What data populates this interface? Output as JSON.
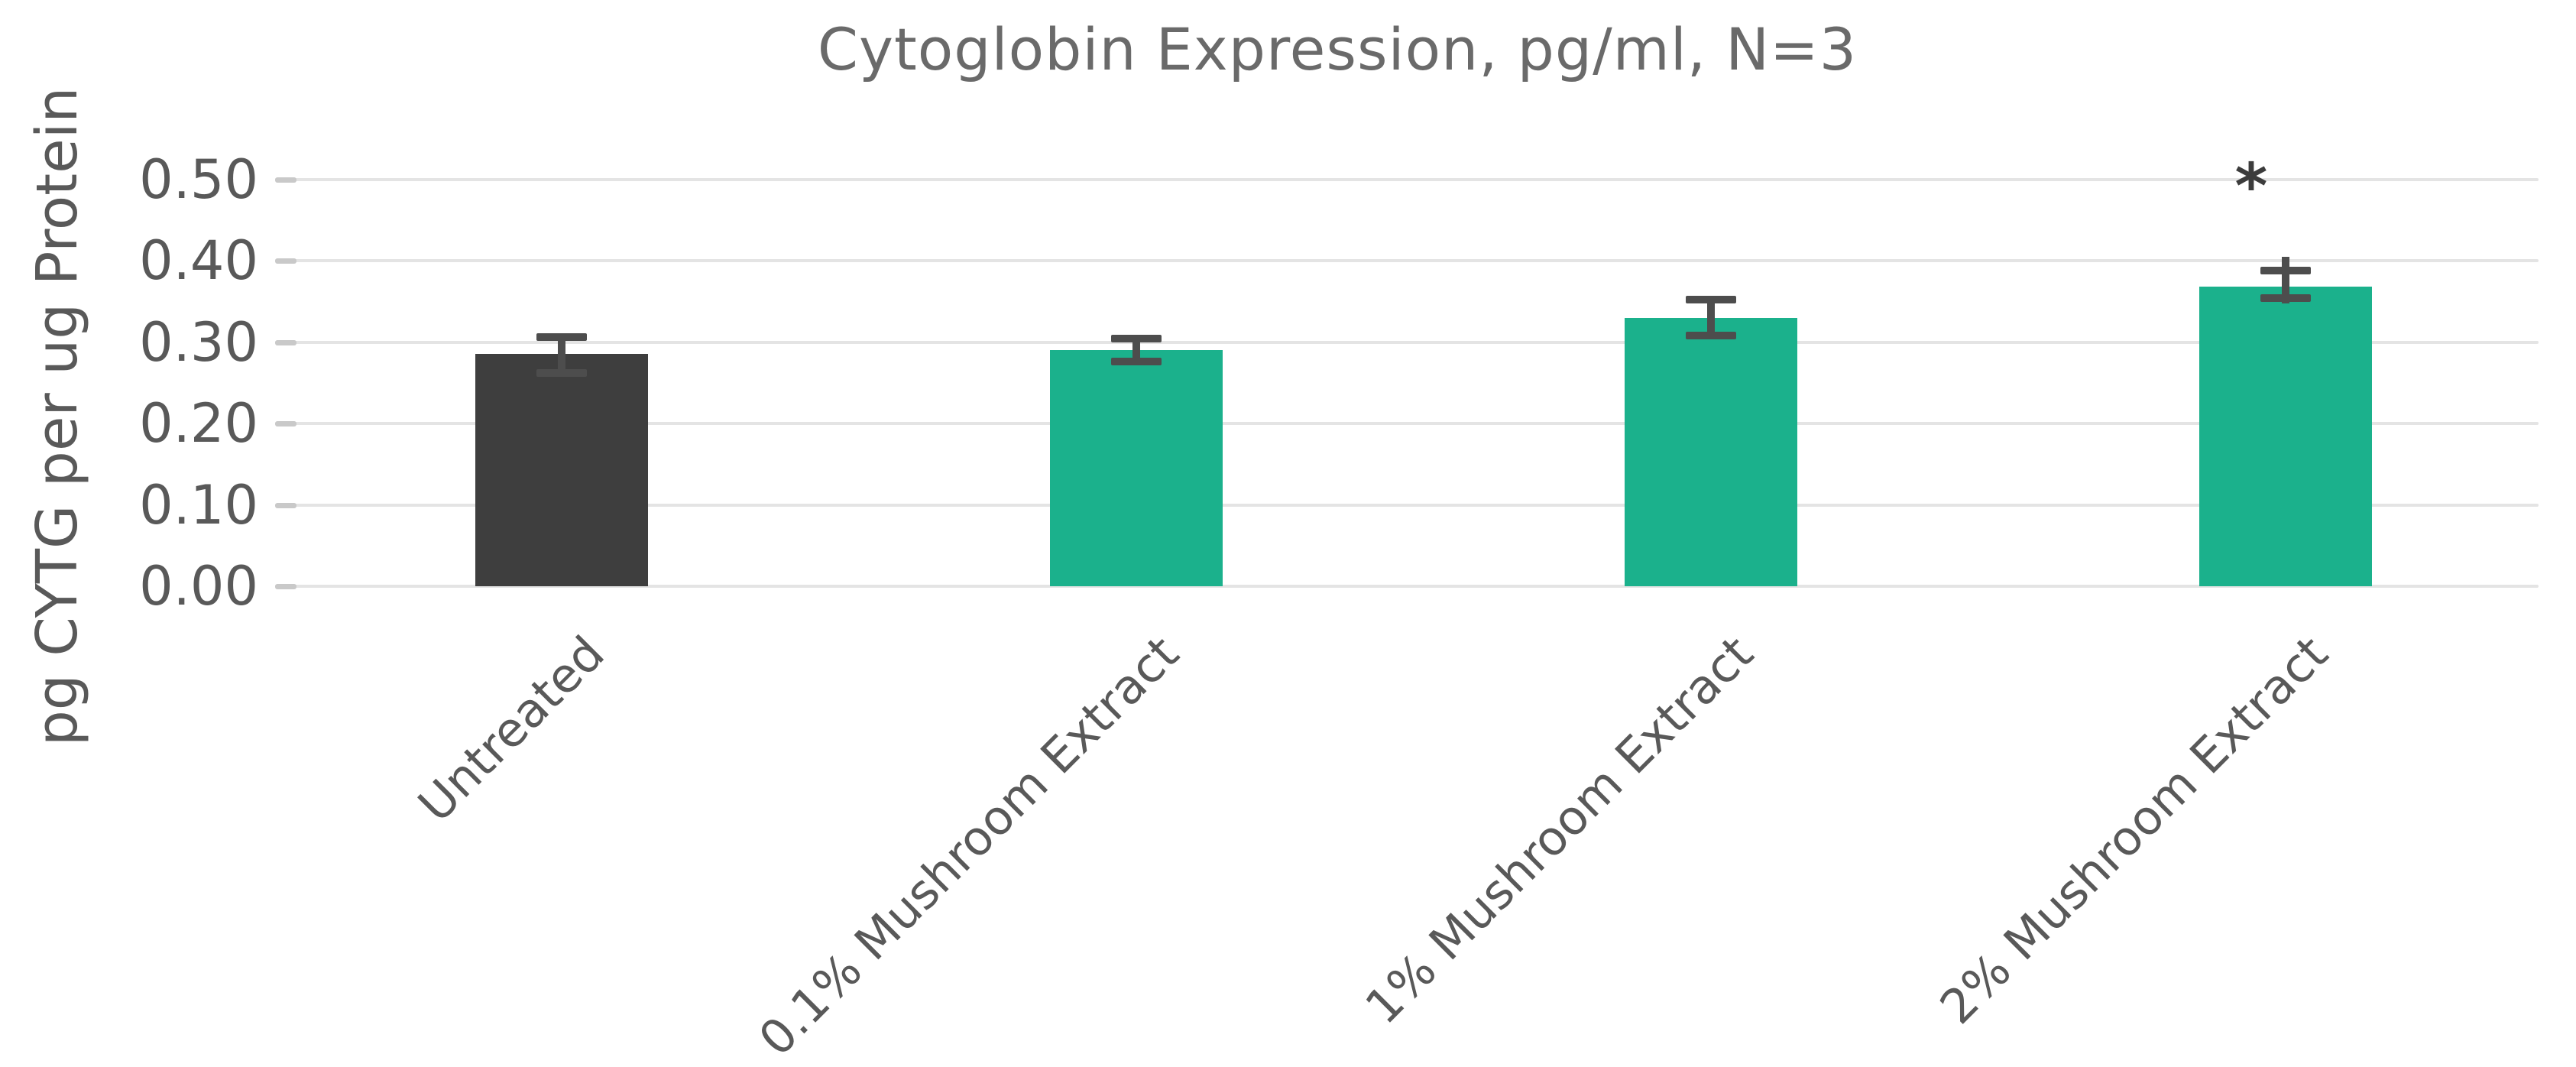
{
  "chart_data": {
    "type": "bar",
    "title": "Cytoglobin Expression, pg/ml, N=3",
    "xlabel": "",
    "ylabel": "pg CYTG per ug Protein",
    "categories": [
      "Untreated",
      "0.1% Mushroom Extract",
      "1% Mushroom Extract",
      "2% Mushroom Extract"
    ],
    "values": [
      0.285,
      0.29,
      0.33,
      0.368
    ],
    "error_low": [
      0.262,
      0.276,
      0.308,
      0.354
    ],
    "error_high": [
      0.306,
      0.304,
      0.352,
      0.388
    ],
    "whisker_low": [
      null,
      null,
      null,
      0.347
    ],
    "whisker_high": [
      null,
      null,
      null,
      0.405
    ],
    "bar_colors": [
      "#3e3e3e",
      "#1bb18c",
      "#1bb18c",
      "#1bb18c"
    ],
    "error_bar_color": "#4d4d4d",
    "gridline_color": "#e4e4e4",
    "ylim": [
      0.0,
      0.5
    ],
    "grid": "on",
    "legend_position": "none",
    "yticks": [
      {
        "label": "0.00",
        "value": 0.0
      },
      {
        "label": "0.10",
        "value": 0.1
      },
      {
        "label": "0.20",
        "value": 0.2
      },
      {
        "label": "0.30",
        "value": 0.3
      },
      {
        "label": "0.40",
        "value": 0.4
      },
      {
        "label": "0.50",
        "value": 0.5
      }
    ],
    "annotations": [
      {
        "text": "*",
        "category_index": 3,
        "value": 0.49
      }
    ]
  }
}
